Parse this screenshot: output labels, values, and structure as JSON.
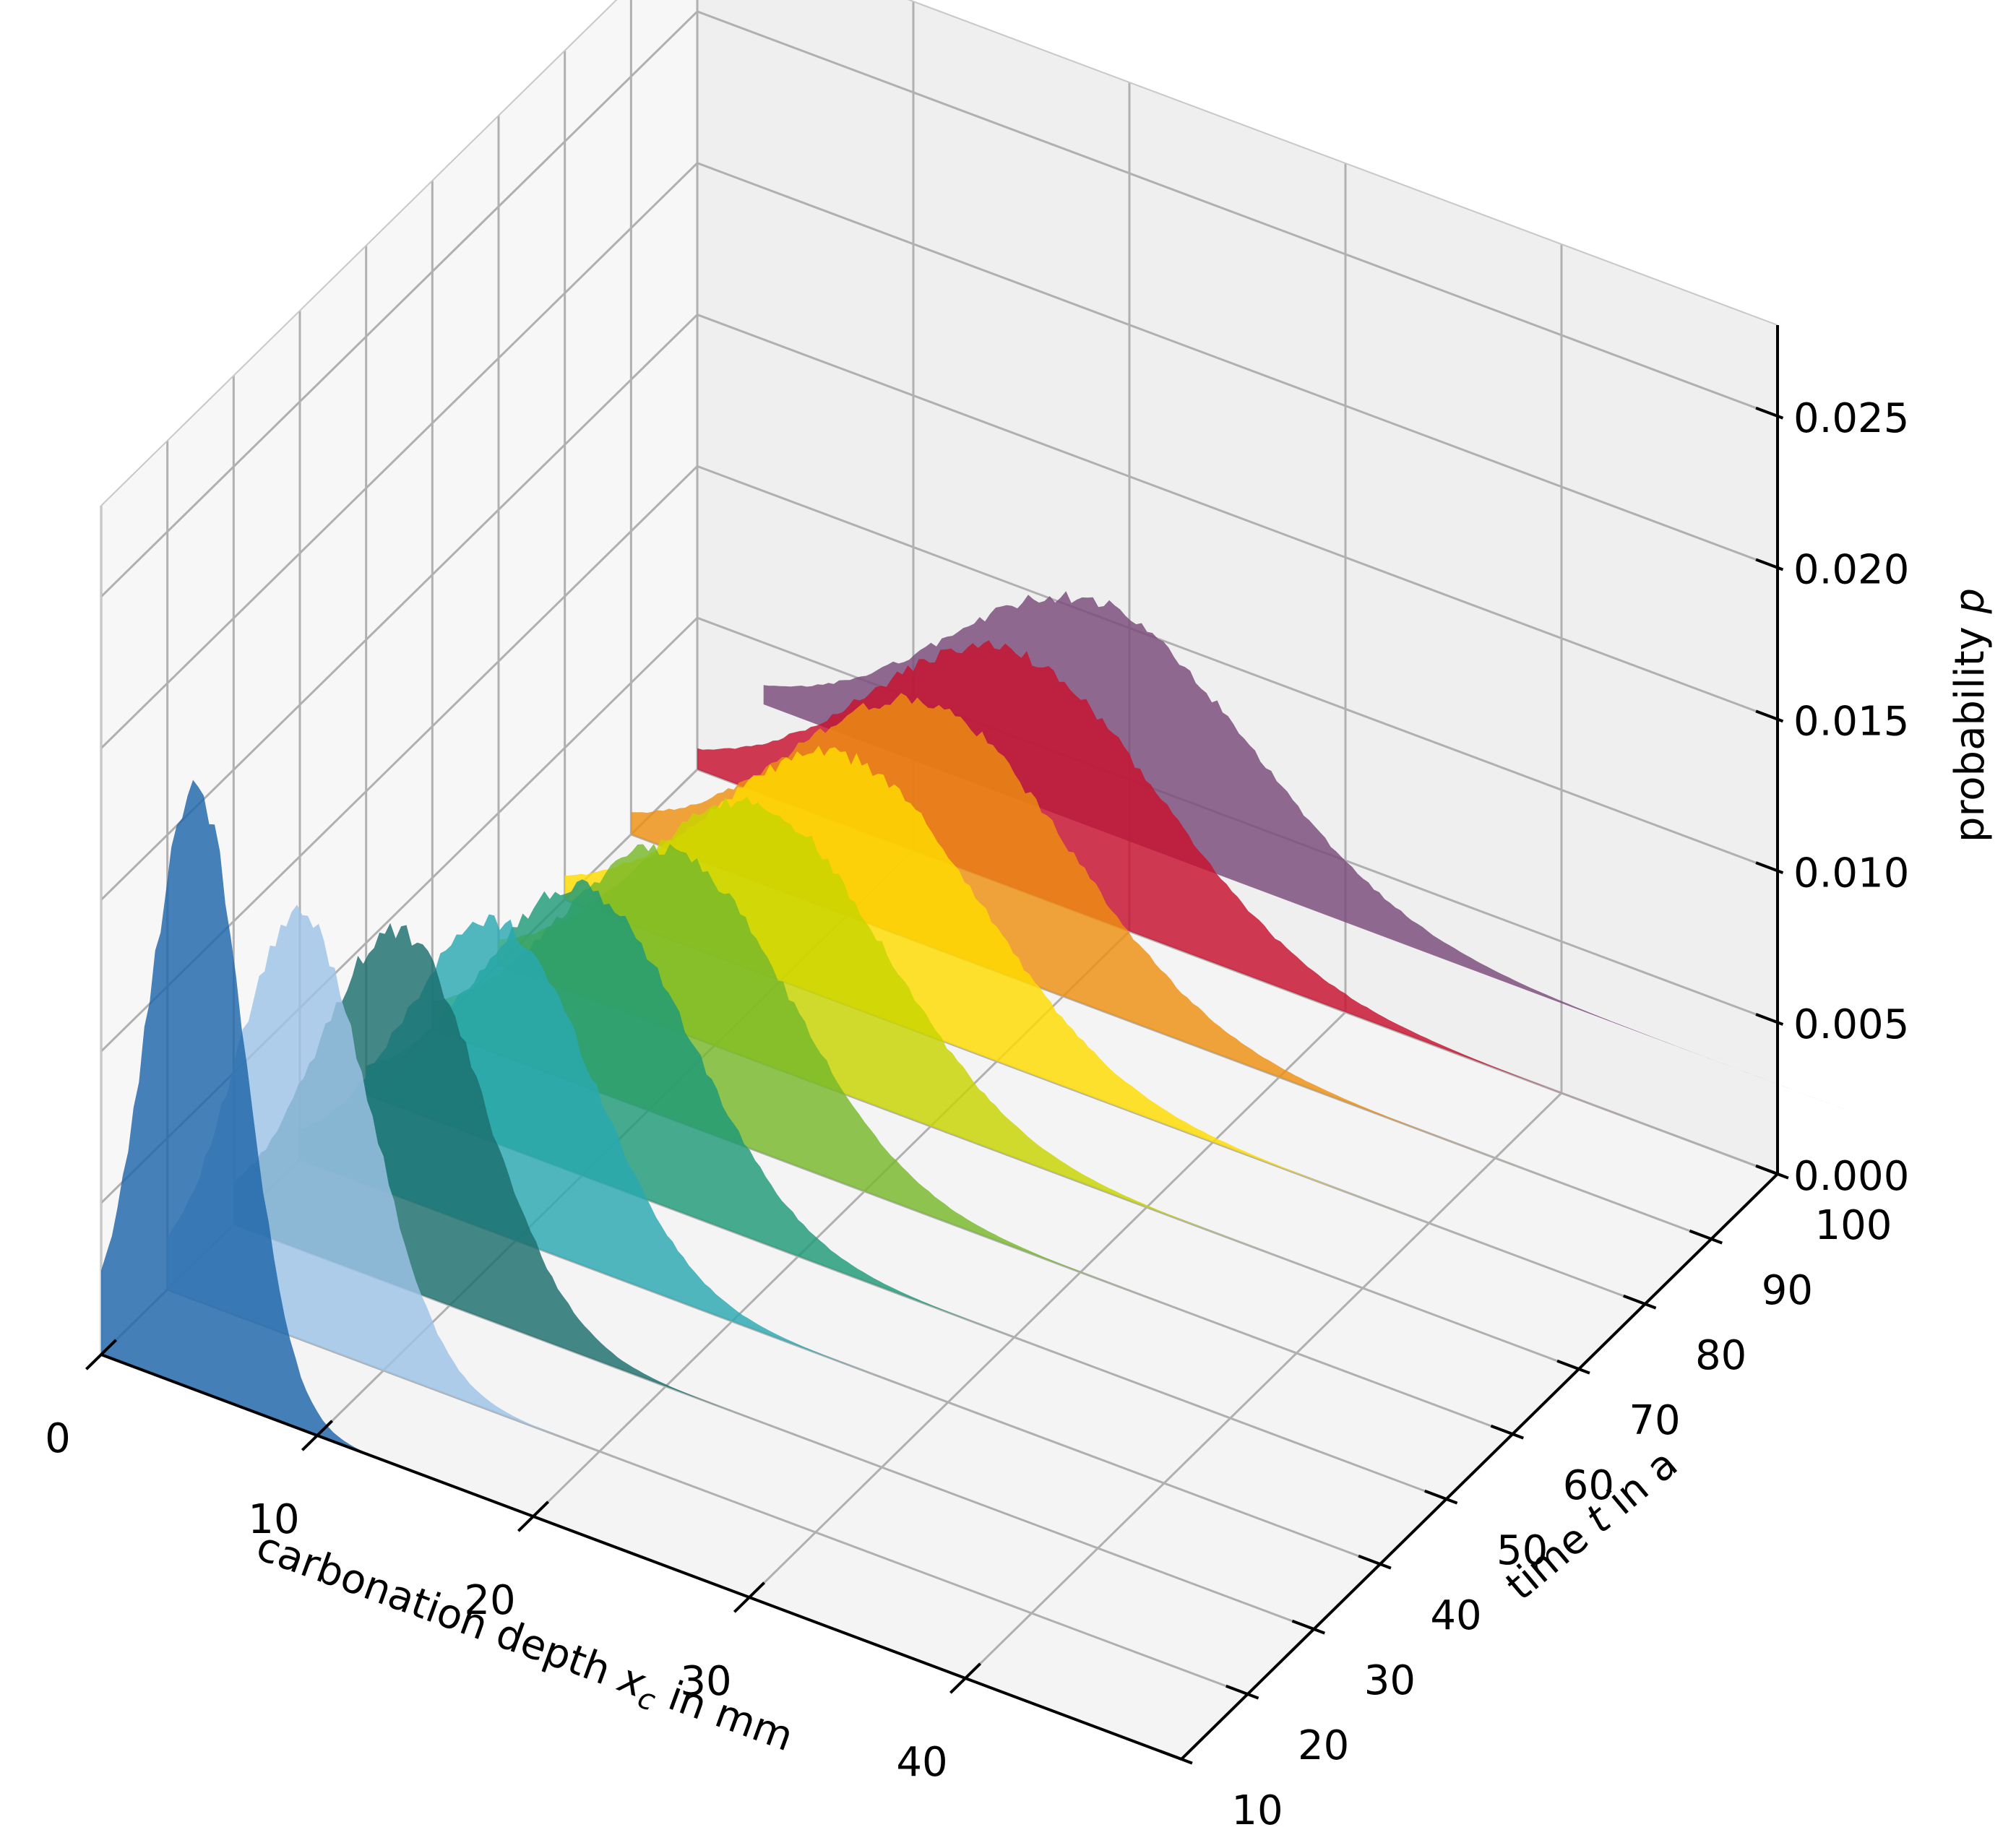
{
  "chart_data": {
    "type": "area",
    "projection": "3d",
    "title": "",
    "xlabel": {
      "text": "carbonation depth ",
      "var": "x",
      "sub": "c",
      "unit": " in mm"
    },
    "ylabel": {
      "text": "time ",
      "var": "t",
      "unit": " in a"
    },
    "zlabel": {
      "text": "probability ",
      "var": "p"
    },
    "xlim": [
      0,
      50
    ],
    "ylim": [
      10,
      100
    ],
    "zlim": [
      0,
      0.028
    ],
    "xticks": [
      "0",
      "10",
      "20",
      "30",
      "40"
    ],
    "yticks": [
      "10",
      "20",
      "30",
      "40",
      "50",
      "60",
      "70",
      "80",
      "90",
      "100"
    ],
    "zticks": [
      "0.000",
      "0.005",
      "0.010",
      "0.015",
      "0.020",
      "0.025"
    ],
    "grid": true,
    "series": [
      {
        "t": 10,
        "mean": 4.4,
        "sd": 2.2,
        "peak": 0.02,
        "color": "#1f65aa"
      },
      {
        "t": 20,
        "mean": 6.3,
        "sd": 3.1,
        "peak": 0.014,
        "color": "#9dc3e6"
      },
      {
        "t": 30,
        "mean": 7.8,
        "sd": 3.8,
        "peak": 0.0117,
        "color": "#1b6e6e"
      },
      {
        "t": 40,
        "mean": 9.3,
        "sd": 4.3,
        "peak": 0.0103,
        "color": "#2aa8b0"
      },
      {
        "t": 50,
        "mean": 10.3,
        "sd": 4.8,
        "peak": 0.0095,
        "color": "#1f9a78"
      },
      {
        "t": 60,
        "mean": 11.3,
        "sd": 5.3,
        "peak": 0.0089,
        "color": "#76b82a"
      },
      {
        "t": 70,
        "mean": 12.3,
        "sd": 5.7,
        "peak": 0.0085,
        "color": "#c8d400"
      },
      {
        "t": 80,
        "mean": 13.2,
        "sd": 6.1,
        "peak": 0.0082,
        "color": "#ffdc00"
      },
      {
        "t": 90,
        "mean": 14.0,
        "sd": 6.4,
        "peak": 0.008,
        "color": "#ee8f11"
      },
      {
        "t": 100,
        "mean": 14.8,
        "sd": 6.7,
        "peak": 0.0078,
        "color": "#c8102e"
      },
      {
        "t": 110,
        "mean": 15.6,
        "sd": 7.0,
        "peak": 0.0075,
        "color": "#7a4a7a"
      }
    ]
  }
}
